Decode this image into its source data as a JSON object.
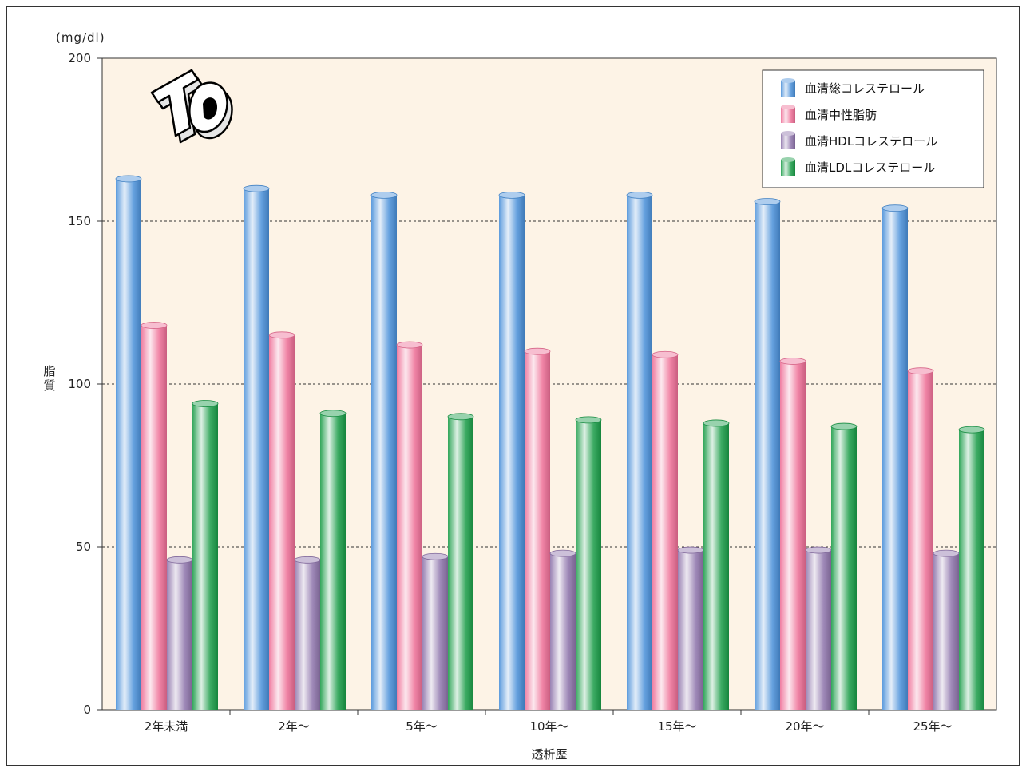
{
  "chart_data": {
    "type": "bar",
    "title": "",
    "unit_label": "(mg/dl)",
    "ylabel": "脂質",
    "xlabel": "透析歴",
    "ylim": [
      0,
      200
    ],
    "yticks": [
      0,
      50,
      100,
      150,
      200
    ],
    "grid": "horizontal-dashed",
    "legend_position": "top-right",
    "categories": [
      "2年未満",
      "2年～",
      "5年～",
      "10年～",
      "15年～",
      "20年～",
      "25年～"
    ],
    "series": [
      {
        "name": "血清総コレステロール",
        "color": "#4a90d9",
        "values": [
          163,
          160,
          158,
          158,
          158,
          156,
          154
        ]
      },
      {
        "name": "血清中性脂肪",
        "color": "#ee6f96",
        "values": [
          118,
          115,
          112,
          110,
          109,
          107,
          104
        ]
      },
      {
        "name": "血清HDLコレステロール",
        "color": "#8e74ab",
        "values": [
          46,
          46,
          47,
          48,
          49,
          49,
          48
        ]
      },
      {
        "name": "血清LDLコレステロール",
        "color": "#1a9c48",
        "values": [
          94,
          91,
          90,
          89,
          88,
          87,
          86
        ]
      }
    ]
  },
  "logo": {
    "text": "TO",
    "icon": "to-3d-logo"
  },
  "colors": {
    "plot_background": "#fdf3e6",
    "frame": "#333333"
  }
}
